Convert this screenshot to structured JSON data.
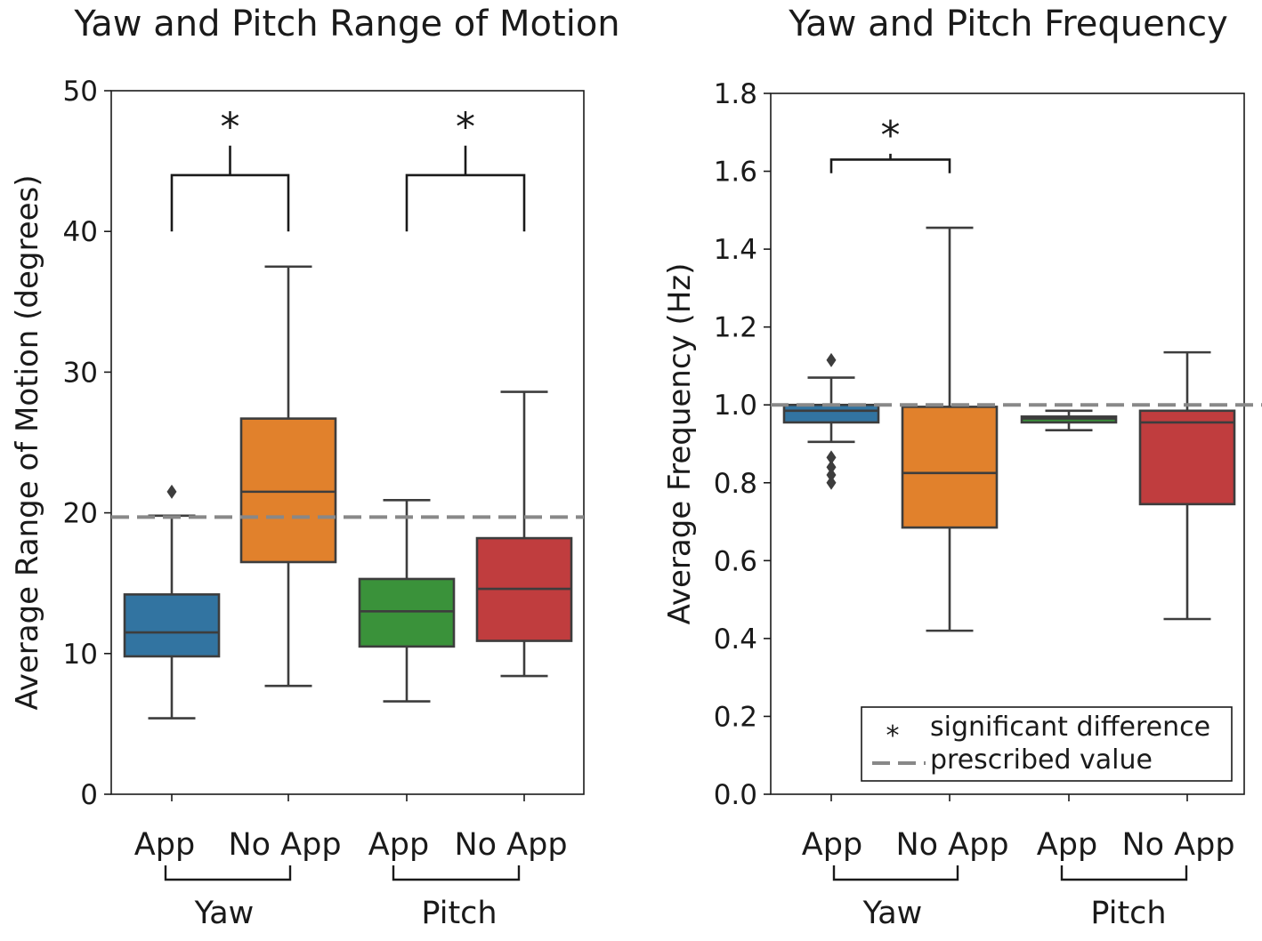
{
  "chart_data": [
    {
      "type": "box",
      "title": "Yaw and Pitch Range of Motion",
      "ylabel": "Average Range of Motion (degrees)",
      "ylim": [
        0,
        50
      ],
      "yticks": [
        "0",
        "10",
        "20",
        "30",
        "40",
        "50"
      ],
      "yticks_values": [
        0,
        10,
        20,
        30,
        40,
        50
      ],
      "categories": [
        "App",
        "No App",
        "App",
        "No App"
      ],
      "groups": [
        {
          "label": "Yaw",
          "members": [
            0,
            1
          ]
        },
        {
          "label": "Pitch",
          "members": [
            2,
            3
          ]
        }
      ],
      "prescribed_value": 19.7,
      "boxes": [
        {
          "name": "Yaw App",
          "color": "#3274a1",
          "whisker_low": 5.4,
          "q1": 9.8,
          "median": 11.5,
          "q3": 14.2,
          "whisker_high": 19.8,
          "outliers": [
            21.5
          ]
        },
        {
          "name": "Yaw No App",
          "color": "#e1812c",
          "whisker_low": 7.7,
          "q1": 16.5,
          "median": 21.5,
          "q3": 26.7,
          "whisker_high": 37.5,
          "outliers": []
        },
        {
          "name": "Pitch App",
          "color": "#3a923a",
          "whisker_low": 6.6,
          "q1": 10.5,
          "median": 13.0,
          "q3": 15.3,
          "whisker_high": 20.9,
          "outliers": []
        },
        {
          "name": "Pitch No App",
          "color": "#c03d3e",
          "whisker_low": 8.4,
          "q1": 10.9,
          "median": 14.6,
          "q3": 18.2,
          "whisker_high": 28.6,
          "outliers": []
        }
      ],
      "significance": [
        {
          "pair": [
            0,
            1
          ],
          "bracket_y": 44,
          "leg_y": 40,
          "stem_top": 46.1,
          "label": "*"
        },
        {
          "pair": [
            2,
            3
          ],
          "bracket_y": 44,
          "leg_y": 40,
          "stem_top": 46.1,
          "label": "*"
        }
      ]
    },
    {
      "type": "box",
      "title": "Yaw and Pitch Frequency",
      "ylabel": "Average Frequency (Hz)",
      "ylim": [
        0,
        1.8
      ],
      "yticks": [
        "0.0",
        "0.2",
        "0.4",
        "0.6",
        "0.8",
        "1.0",
        "1.2",
        "1.4",
        "1.6",
        "1.8"
      ],
      "yticks_values": [
        0,
        0.2,
        0.4,
        0.6,
        0.8,
        1.0,
        1.2,
        1.4,
        1.6,
        1.8
      ],
      "categories": [
        "App",
        "No App",
        "App",
        "No App"
      ],
      "groups": [
        {
          "label": "Yaw",
          "members": [
            0,
            1
          ]
        },
        {
          "label": "Pitch",
          "members": [
            2,
            3
          ]
        }
      ],
      "prescribed_value": 1.0,
      "boxes": [
        {
          "name": "Yaw App",
          "color": "#3274a1",
          "whisker_low": 0.905,
          "q1": 0.955,
          "median": 0.985,
          "q3": 1.0,
          "whisker_high": 1.07,
          "outliers": [
            1.115,
            0.865,
            0.84,
            0.82,
            0.8
          ]
        },
        {
          "name": "Yaw No App",
          "color": "#e1812c",
          "whisker_low": 0.42,
          "q1": 0.685,
          "median": 0.825,
          "q3": 0.995,
          "whisker_high": 1.455,
          "outliers": []
        },
        {
          "name": "Pitch App",
          "color": "#3a923a",
          "whisker_low": 0.935,
          "q1": 0.955,
          "median": 0.965,
          "q3": 0.97,
          "whisker_high": 0.985,
          "outliers": []
        },
        {
          "name": "Pitch No App",
          "color": "#c03d3e",
          "whisker_low": 0.45,
          "q1": 0.745,
          "median": 0.955,
          "q3": 0.985,
          "whisker_high": 1.135,
          "outliers": []
        }
      ],
      "significance": [
        {
          "pair": [
            0,
            1
          ],
          "bracket_y": 1.63,
          "leg_y": 1.595,
          "stem_top": 1.645,
          "label": "*"
        }
      ],
      "legend": {
        "placement": "lower-right",
        "entries": [
          {
            "symbol": "*",
            "label": "significant difference"
          },
          {
            "symbol": "dashed-line",
            "label": "prescribed value"
          }
        ]
      }
    }
  ]
}
